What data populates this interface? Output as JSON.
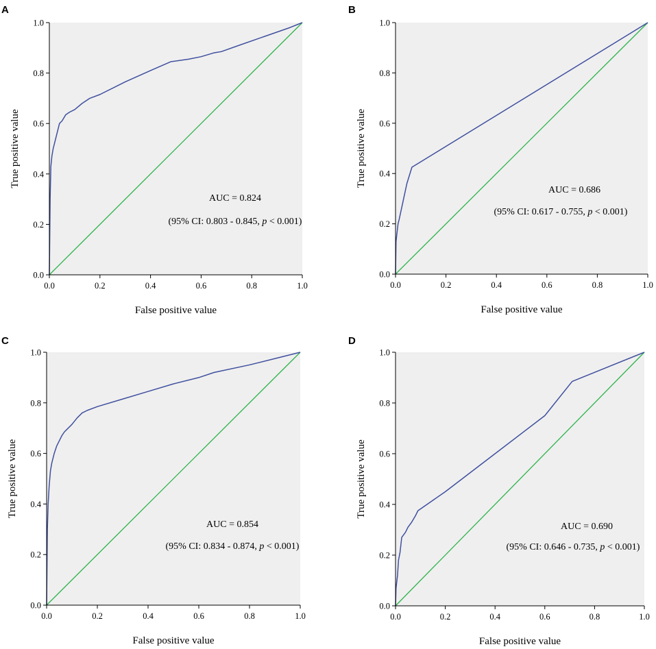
{
  "colors": {
    "plot_background": "#efefef",
    "roc_curve": "#3f4f9f",
    "reference_line": "#2db34a",
    "axis": "#000000"
  },
  "chart_data": [
    {
      "panel": "A",
      "type": "line",
      "xlabel": "False positive value",
      "ylabel": "True positive value",
      "xlim": [
        0,
        1
      ],
      "ylim": [
        0,
        1
      ],
      "xticks": [
        "0.0",
        "0.2",
        "0.4",
        "0.6",
        "0.8",
        "1.0"
      ],
      "yticks": [
        "0.0",
        "0.2",
        "0.4",
        "0.6",
        "0.8",
        "1.0"
      ],
      "auc_label": "AUC = 0.824",
      "ci_label": "(95% CI: 0.803 - 0.845, p < 0.001)",
      "series": [
        {
          "name": "ROC",
          "x": [
            0,
            0.003,
            0.006,
            0.01,
            0.015,
            0.02,
            0.03,
            0.04,
            0.05,
            0.065,
            0.08,
            0.1,
            0.13,
            0.16,
            0.2,
            0.3,
            0.4,
            0.48,
            0.55,
            0.6,
            0.65,
            0.68,
            0.75,
            0.85,
            0.95,
            1.0
          ],
          "y": [
            0,
            0.3,
            0.43,
            0.47,
            0.5,
            0.52,
            0.56,
            0.6,
            0.61,
            0.635,
            0.645,
            0.655,
            0.68,
            0.7,
            0.715,
            0.765,
            0.81,
            0.845,
            0.855,
            0.865,
            0.88,
            0.885,
            0.91,
            0.945,
            0.98,
            1.0
          ]
        },
        {
          "name": "Reference",
          "x": [
            0,
            1
          ],
          "y": [
            0,
            1
          ]
        }
      ]
    },
    {
      "panel": "B",
      "type": "line",
      "xlabel": "False positive value",
      "ylabel": "True positive value",
      "xlim": [
        0,
        1
      ],
      "ylim": [
        0,
        1
      ],
      "xticks": [
        "0.0",
        "0.2",
        "0.4",
        "0.6",
        "0.8",
        "1.0"
      ],
      "yticks": [
        "0.0",
        "0.2",
        "0.4",
        "0.6",
        "0.8",
        "1.0"
      ],
      "auc_label": "AUC = 0.686",
      "ci_label": "(95% CI: 0.617 - 0.755, p < 0.001)",
      "series": [
        {
          "name": "ROC",
          "x": [
            0,
            0.002,
            0.01,
            0.015,
            0.03,
            0.045,
            0.065,
            1.0
          ],
          "y": [
            0,
            0.13,
            0.2,
            0.22,
            0.29,
            0.36,
            0.425,
            1.0
          ]
        },
        {
          "name": "Reference",
          "x": [
            0,
            1
          ],
          "y": [
            0,
            1
          ]
        }
      ]
    },
    {
      "panel": "C",
      "type": "line",
      "xlabel": "False positive value",
      "ylabel": "True positive value",
      "xlim": [
        0,
        1
      ],
      "ylim": [
        0,
        1
      ],
      "xticks": [
        "0.0",
        "0.2",
        "0.4",
        "0.6",
        "0.8",
        "1.0"
      ],
      "yticks": [
        "0.0",
        "0.2",
        "0.4",
        "0.6",
        "0.8",
        "1.0"
      ],
      "auc_label": "AUC = 0.854",
      "ci_label": "(95% CI: 0.834 - 0.874, p < 0.001)",
      "series": [
        {
          "name": "ROC",
          "x": [
            0,
            0.003,
            0.006,
            0.01,
            0.015,
            0.02,
            0.03,
            0.04,
            0.05,
            0.06,
            0.07,
            0.08,
            0.1,
            0.12,
            0.14,
            0.16,
            0.2,
            0.3,
            0.4,
            0.5,
            0.6,
            0.66,
            0.8,
            0.9,
            1.0
          ],
          "y": [
            0,
            0.3,
            0.4,
            0.47,
            0.53,
            0.56,
            0.6,
            0.63,
            0.65,
            0.67,
            0.685,
            0.695,
            0.715,
            0.74,
            0.76,
            0.77,
            0.785,
            0.815,
            0.845,
            0.875,
            0.9,
            0.92,
            0.95,
            0.975,
            1.0
          ]
        },
        {
          "name": "Reference",
          "x": [
            0,
            1
          ],
          "y": [
            0,
            1
          ]
        }
      ]
    },
    {
      "panel": "D",
      "type": "line",
      "xlabel": "False positive value",
      "ylabel": "True positive value",
      "xlim": [
        0,
        1
      ],
      "ylim": [
        0,
        1
      ],
      "xticks": [
        "0.0",
        "0.2",
        "0.4",
        "0.6",
        "0.8",
        "1.0"
      ],
      "yticks": [
        "0.0",
        "0.2",
        "0.4",
        "0.6",
        "0.8",
        "1.0"
      ],
      "auc_label": "AUC = 0.690",
      "ci_label": "(95% CI: 0.646 - 0.735, p < 0.001)",
      "series": [
        {
          "name": "ROC",
          "x": [
            0,
            0.002,
            0.008,
            0.012,
            0.018,
            0.025,
            0.04,
            0.05,
            0.065,
            0.08,
            0.09,
            0.2,
            0.4,
            0.6,
            0.71,
            1.0
          ],
          "y": [
            0,
            0.07,
            0.12,
            0.18,
            0.21,
            0.27,
            0.29,
            0.31,
            0.33,
            0.355,
            0.375,
            0.45,
            0.6,
            0.75,
            0.885,
            1.0
          ]
        },
        {
          "name": "Reference",
          "x": [
            0,
            1
          ],
          "y": [
            0,
            1
          ]
        }
      ]
    }
  ]
}
